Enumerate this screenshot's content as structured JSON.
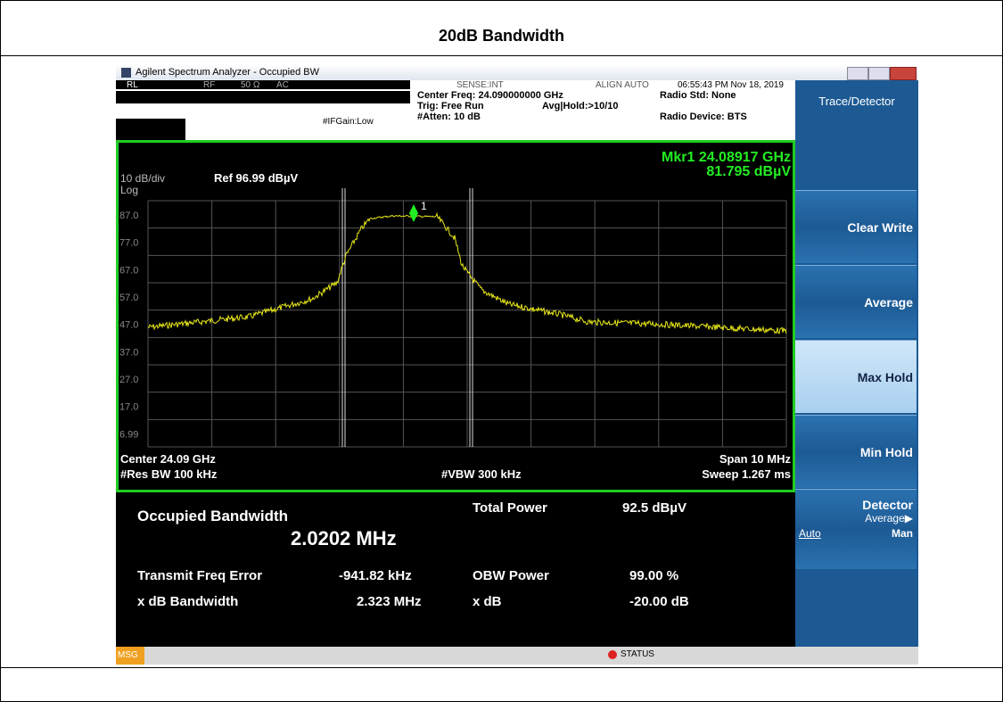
{
  "document": {
    "title": "20dB Bandwidth",
    "window": {
      "title": "Agilent Spectrum Analyzer - Occupied BW"
    },
    "header": {
      "rl": "RL",
      "rf": "RF",
      "impedance": "50 Ω",
      "coupling": "AC",
      "sense": "SENSE:INT",
      "align": "ALIGN AUTO",
      "timestamp": "06:55:43 PM Nov 18, 2019",
      "center_freq": "Center Freq: 24.090000000 GHz",
      "trig": "Trig: Free Run",
      "avg_hold": "Avg|Hold:>10/10",
      "atten": "#Atten: 10 dB",
      "ifgain": "#IFGain:Low",
      "radio_std": "Radio Std: None",
      "radio_device": "Radio Device: BTS"
    },
    "graph": {
      "scale": "10 dB/div",
      "ref": "Ref 96.99 dBµV",
      "log": "Log",
      "marker_freq": "Mkr1  24.08917 GHz",
      "marker_level": "81.795 dBµV",
      "marker_id": "1",
      "y_labels": [
        "87.0",
        "77.0",
        "67.0",
        "57.0",
        "47.0",
        "37.0",
        "27.0",
        "17.0",
        "6.99"
      ],
      "center": "Center  24.09 GHz",
      "span": "Span 10 MHz",
      "res_bw": "#Res BW  100 kHz",
      "vbw": "#VBW  300 kHz",
      "sweep": "Sweep  1.267 ms"
    },
    "results": {
      "obw_label": "Occupied Bandwidth",
      "obw_value": "2.0202 MHz",
      "total_power_label": "Total Power",
      "total_power_value": "92.5 dBµV",
      "freq_error_label": "Transmit Freq Error",
      "freq_error_value": "-941.82 kHz",
      "obw_power_label": "OBW Power",
      "obw_power_value": "99.00 %",
      "xdb_bw_label": "x dB Bandwidth",
      "xdb_bw_value": "2.323 MHz",
      "xdb_label": "x dB",
      "xdb_value": "-20.00 dB"
    },
    "softkeys": {
      "menu": "Trace/Detector",
      "keys": [
        "Clear Write",
        "Average",
        "Max Hold",
        "Min Hold"
      ],
      "detector": "Detector",
      "detector_value": "Average▶",
      "auto": "Auto",
      "man": "Man"
    },
    "statusbar": {
      "msg": "MSG",
      "status": "STATUS"
    }
  }
}
